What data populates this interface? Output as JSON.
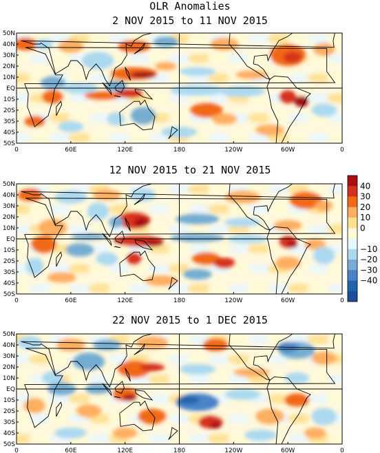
{
  "figure": {
    "title": "OLR Anomalies",
    "panels": [
      {
        "title": "2 NOV 2015 to 11 NOV 2015"
      },
      {
        "title": "12 NOV 2015 to 21 NOV 2015"
      },
      {
        "title": "22 NOV 2015 to 1 DEC 2015"
      }
    ],
    "x_tick_labels": [
      "0",
      "60E",
      "120E",
      "180",
      "120W",
      "60W",
      "0"
    ],
    "y_tick_labels": [
      "50N",
      "40N",
      "30N",
      "20N",
      "10N",
      "EQ",
      "10S",
      "20S",
      "30S",
      "40S",
      "50S"
    ]
  },
  "colorbar": {
    "labels": [
      "40",
      "30",
      "20",
      "10",
      "0",
      "−10",
      "−20",
      "−30",
      "−40"
    ],
    "colors": [
      "#a50f15",
      "#d7301f",
      "#f16913",
      "#fdae61",
      "#fee090",
      "#fffbd5",
      "#eaf7fd",
      "#abd9f0",
      "#74add1",
      "#4a84c8",
      "#2166ac",
      "#1a4f9c"
    ]
  },
  "colors": {
    "land_outline": "#000000",
    "background": "#fff8dc"
  }
}
